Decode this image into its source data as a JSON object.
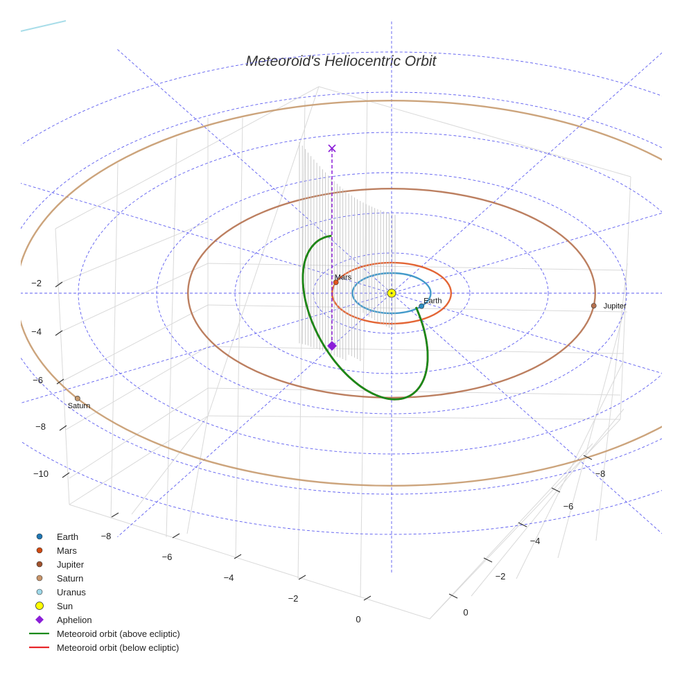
{
  "chart_data": {
    "type": "scatter3d",
    "title": "Meteoroid's Heliocentric Orbit",
    "axes": {
      "y_ticks_left": [
        "−2",
        "−4",
        "−6",
        "−8",
        "−10"
      ],
      "x_ticks_front": [
        "−8",
        "−6",
        "−4",
        "−2",
        "0"
      ],
      "x_ticks_right": [
        "−8",
        "−6",
        "−4",
        "−2",
        "0"
      ]
    },
    "planets": [
      {
        "name": "Earth",
        "label": "Earth",
        "orbit_radius_au": 1.0,
        "color": "#2f8fc4"
      },
      {
        "name": "Mars",
        "label": "Mars",
        "orbit_radius_au": 1.52,
        "color": "#e0541f"
      },
      {
        "name": "Jupiter",
        "label": "Jupiter",
        "orbit_radius_au": 5.2,
        "color": "#b5714f"
      },
      {
        "name": "Saturn",
        "label": "Saturn",
        "orbit_radius_au": 9.58,
        "color": "#c69a6e"
      },
      {
        "name": "Uranus",
        "color": "#9dd8e8"
      }
    ],
    "sun": {
      "name": "Sun",
      "color": "#ffff00"
    },
    "meteoroid_orbit": {
      "above_ecliptic": {
        "name": "Meteoroid orbit (above ecliptic)",
        "color": "#1a8a1a"
      },
      "below_ecliptic": {
        "name": "Meteoroid orbit (below ecliptic)",
        "color": "#e8262a"
      }
    },
    "aphelion": {
      "name": "Aphelion",
      "color": "#8b1ed8"
    },
    "polar_grid_radii_au": [
      2,
      4,
      6,
      8,
      10,
      12
    ],
    "legend": [
      {
        "label": "Earth",
        "marker": "dot",
        "color": "#1f77b4"
      },
      {
        "label": "Mars",
        "marker": "dot",
        "color": "#d04a12"
      },
      {
        "label": "Jupiter",
        "marker": "dot",
        "color": "#a0522d"
      },
      {
        "label": "Saturn",
        "marker": "dot",
        "color": "#c9956a"
      },
      {
        "label": "Uranus",
        "marker": "dot",
        "color": "#9fd9ea"
      },
      {
        "label": "Sun",
        "marker": "sun",
        "color": "#ffff00"
      },
      {
        "label": "Aphelion",
        "marker": "diamond",
        "color": "#8b1ed8"
      },
      {
        "label": "Meteoroid orbit (above ecliptic)",
        "marker": "line",
        "color": "#1a8a1a"
      },
      {
        "label": "Meteoroid orbit (below ecliptic)",
        "marker": "line",
        "color": "#e8262a"
      }
    ]
  }
}
